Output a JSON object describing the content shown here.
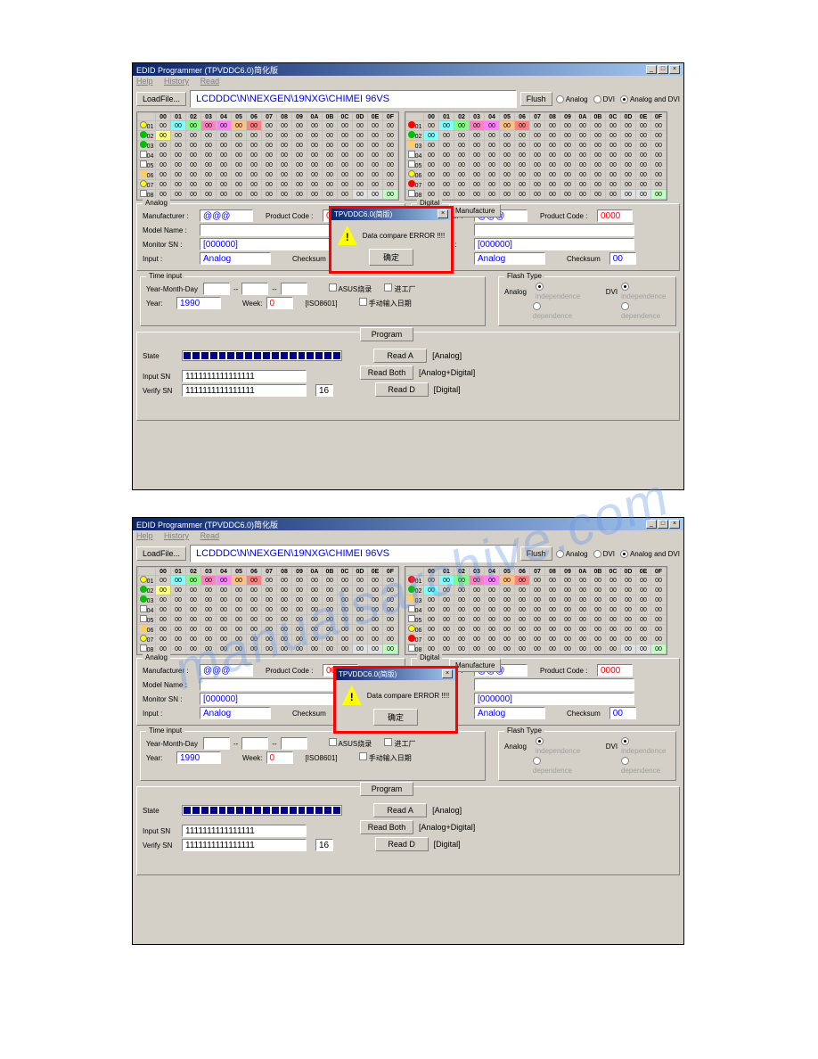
{
  "watermark": "manualsarchive.com",
  "window": {
    "title": "EDID Programmer (TPVDDC6.0)简化版",
    "menu": [
      "Help",
      "History",
      "Read"
    ]
  },
  "toolbar": {
    "loadfile": "LoadFile...",
    "path": "LCDDDC\\N\\NEXGEN\\19NXG\\CHIMEI 96VS",
    "flush": "Flush",
    "radios": [
      "Analog",
      "DVI",
      "Analog and DVI"
    ]
  },
  "hex": {
    "cols": [
      "00",
      "01",
      "02",
      "03",
      "04",
      "05",
      "06",
      "07",
      "08",
      "09",
      "0A",
      "0B",
      "0C",
      "0D",
      "0E",
      "0F"
    ],
    "rows": [
      "01",
      "02",
      "03",
      "04",
      "05",
      "06",
      "07",
      "08"
    ]
  },
  "analog": {
    "legend": "Analog",
    "mfr_lbl": "Manufacturer :",
    "mfr_val": "@@@",
    "pcode_lbl": "Product Code :",
    "pcode_val": "0000",
    "model_lbl": "Model Name :",
    "model_val": "",
    "sn_lbl": "Monitor SN :",
    "sn_val": "[000000]",
    "input_lbl": "Input :",
    "input_val": "Analog",
    "chk_lbl": "Checksum",
    "chk_val": "00"
  },
  "digital": {
    "legend": "Digital",
    "mfr_lbl": "Manufacturer :",
    "mfr_val": "@@@",
    "pcode_lbl": "Product Code :",
    "pcode_val": "0000",
    "sn_lbl": "Monitor SN :",
    "sn_val": "[000000]",
    "input_lbl": "Input :",
    "input_val": "Analog",
    "chk_lbl": "Checksum",
    "chk_val": "00"
  },
  "timeinput": {
    "legend": "Time input",
    "ymd": "Year-Month-Day",
    "year_lbl": "Year:",
    "year_val": "1990",
    "week_lbl": "Week:",
    "week_val": "0",
    "iso": "[ISO8601]",
    "chk1": "ASUS烧录",
    "chk2": "进工厂",
    "chk3": "手动输入日期"
  },
  "flashtype": {
    "legend": "Flash Type",
    "analog": "Analog",
    "dvi": "DVI",
    "r1": "independence",
    "r2": "dependence"
  },
  "actions": {
    "program": "Program",
    "reada": "Read A",
    "readboth": "Read Both",
    "readd": "Read D",
    "analog": "[Analog]",
    "both": "[Analog+Digital]",
    "digital": "[Digital]"
  },
  "state": {
    "lbl": "State",
    "inputsn_lbl": "Input SN",
    "inputsn_val": "1111111111111111",
    "verifysn_lbl": "Verify SN",
    "verifysn_val": "1111111111111111",
    "count": "16"
  },
  "dialog": {
    "title": "TPVDDC6.0(简版)",
    "msg": "Data compare ERROR !!!!",
    "ok": "确定",
    "mfr_btn": "Manufacture"
  }
}
